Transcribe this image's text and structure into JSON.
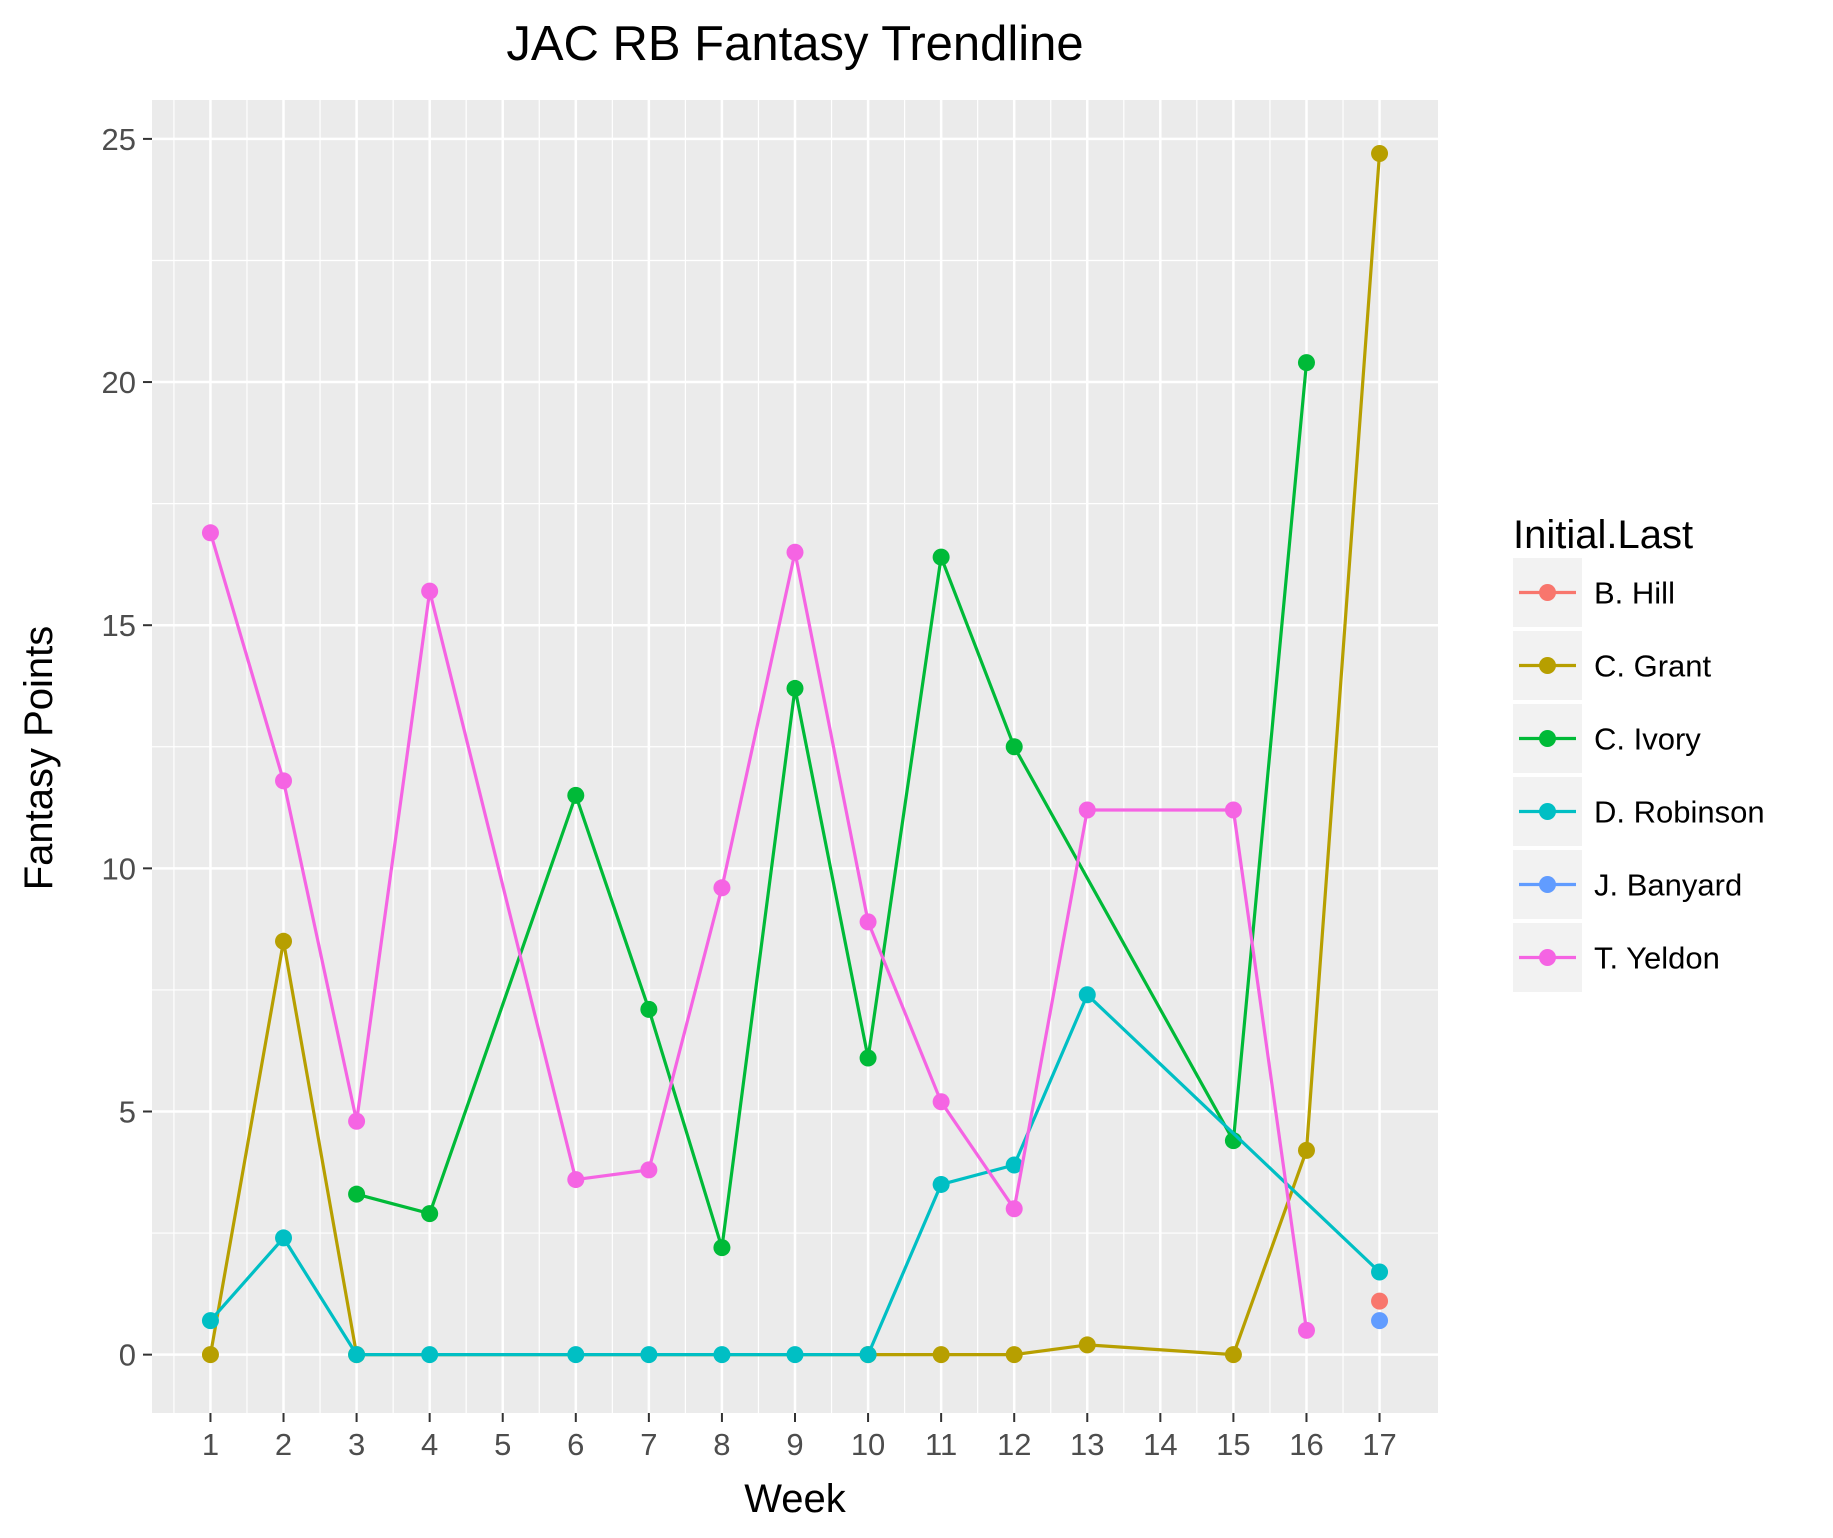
{
  "chart_data": {
    "type": "line",
    "title": "JAC RB Fantasy Trendline",
    "xlabel": "Week",
    "ylabel": "Fantasy Points",
    "x_ticks": [
      "1",
      "2",
      "3",
      "4",
      "5",
      "6",
      "7",
      "8",
      "9",
      "10",
      "11",
      "12",
      "13",
      "14",
      "15",
      "16",
      "17"
    ],
    "y_ticks": [
      "0",
      "5",
      "10",
      "15",
      "20",
      "25"
    ],
    "xlim": [
      0.2,
      17.8
    ],
    "ylim": [
      -1.2,
      25.8
    ],
    "grid": true,
    "legend": {
      "title": "Initial.Last",
      "position": "right"
    },
    "series": [
      {
        "name": "B. Hill",
        "color": "#F8766D",
        "points": [
          [
            17,
            1.1
          ]
        ]
      },
      {
        "name": "C. Grant",
        "color": "#B79F00",
        "points": [
          [
            1,
            0
          ],
          [
            2,
            8.5
          ],
          [
            3,
            0
          ],
          [
            10,
            0
          ],
          [
            11,
            0
          ],
          [
            12,
            0
          ],
          [
            13,
            0.2
          ],
          [
            15,
            0
          ],
          [
            16,
            4.2
          ],
          [
            17,
            24.7
          ]
        ]
      },
      {
        "name": "C. Ivory",
        "color": "#00BA38",
        "points": [
          [
            3,
            3.3
          ],
          [
            4,
            2.9
          ],
          [
            6,
            11.5
          ],
          [
            7,
            7.1
          ],
          [
            8,
            2.2
          ],
          [
            9,
            13.7
          ],
          [
            10,
            6.1
          ],
          [
            11,
            16.4
          ],
          [
            12,
            12.5
          ],
          [
            15,
            4.4
          ],
          [
            16,
            20.4
          ]
        ]
      },
      {
        "name": "D. Robinson",
        "color": "#00BFC4",
        "points": [
          [
            1,
            0.7
          ],
          [
            2,
            2.4
          ],
          [
            3,
            0
          ],
          [
            4,
            0
          ],
          [
            6,
            0
          ],
          [
            7,
            0
          ],
          [
            8,
            0
          ],
          [
            9,
            0
          ],
          [
            10,
            0
          ],
          [
            11,
            3.5
          ],
          [
            12,
            3.9
          ],
          [
            13,
            7.4
          ],
          [
            17,
            1.7
          ]
        ]
      },
      {
        "name": "J. Banyard",
        "color": "#619CFF",
        "points": [
          [
            17,
            0.7
          ]
        ]
      },
      {
        "name": "T. Yeldon",
        "color": "#F564E3",
        "points": [
          [
            1,
            16.9
          ],
          [
            2,
            11.8
          ],
          [
            3,
            4.8
          ],
          [
            4,
            15.7
          ],
          [
            6,
            3.6
          ],
          [
            7,
            3.8
          ],
          [
            8,
            9.6
          ],
          [
            9,
            16.5
          ],
          [
            10,
            8.9
          ],
          [
            11,
            5.2
          ],
          [
            12,
            3.0
          ],
          [
            13,
            11.2
          ],
          [
            15,
            11.2
          ],
          [
            16,
            0.5
          ]
        ]
      }
    ]
  }
}
